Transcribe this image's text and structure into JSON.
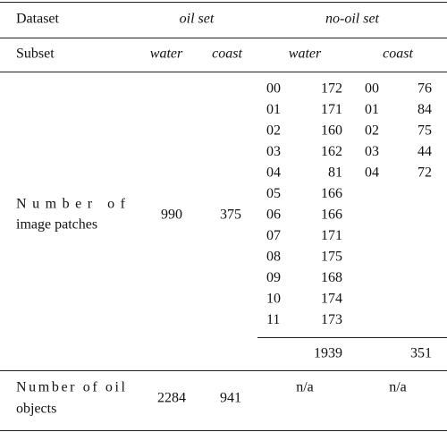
{
  "table": {
    "header": [
      "Dataset",
      "oil set",
      "no-oil set"
    ],
    "subset_row": [
      "Subset",
      "water",
      "coast",
      "water",
      "coast"
    ],
    "patches": {
      "label": [
        "Number of",
        "image patches"
      ],
      "oil_water": "990",
      "oil_coast": "375",
      "nooil_water": [
        [
          "00",
          "172"
        ],
        [
          "01",
          "171"
        ],
        [
          "02",
          "160"
        ],
        [
          "03",
          "162"
        ],
        [
          "04",
          "81"
        ],
        [
          "05",
          "166"
        ],
        [
          "06",
          "166"
        ],
        [
          "07",
          "171"
        ],
        [
          "08",
          "175"
        ],
        [
          "09",
          "168"
        ],
        [
          "10",
          "174"
        ],
        [
          "11",
          "173"
        ]
      ],
      "nooil_coast": [
        [
          "00",
          "76"
        ],
        [
          "01",
          "84"
        ],
        [
          "02",
          "75"
        ],
        [
          "03",
          "44"
        ],
        [
          "04",
          "72"
        ]
      ],
      "nooil_water_total": "1939",
      "nooil_coast_total": "351"
    },
    "objects": {
      "label": [
        "Number of oil",
        "objects"
      ],
      "oil_water": "2284",
      "oil_coast": "941",
      "nooil_water": "n/a",
      "nooil_coast": "n/a"
    }
  }
}
